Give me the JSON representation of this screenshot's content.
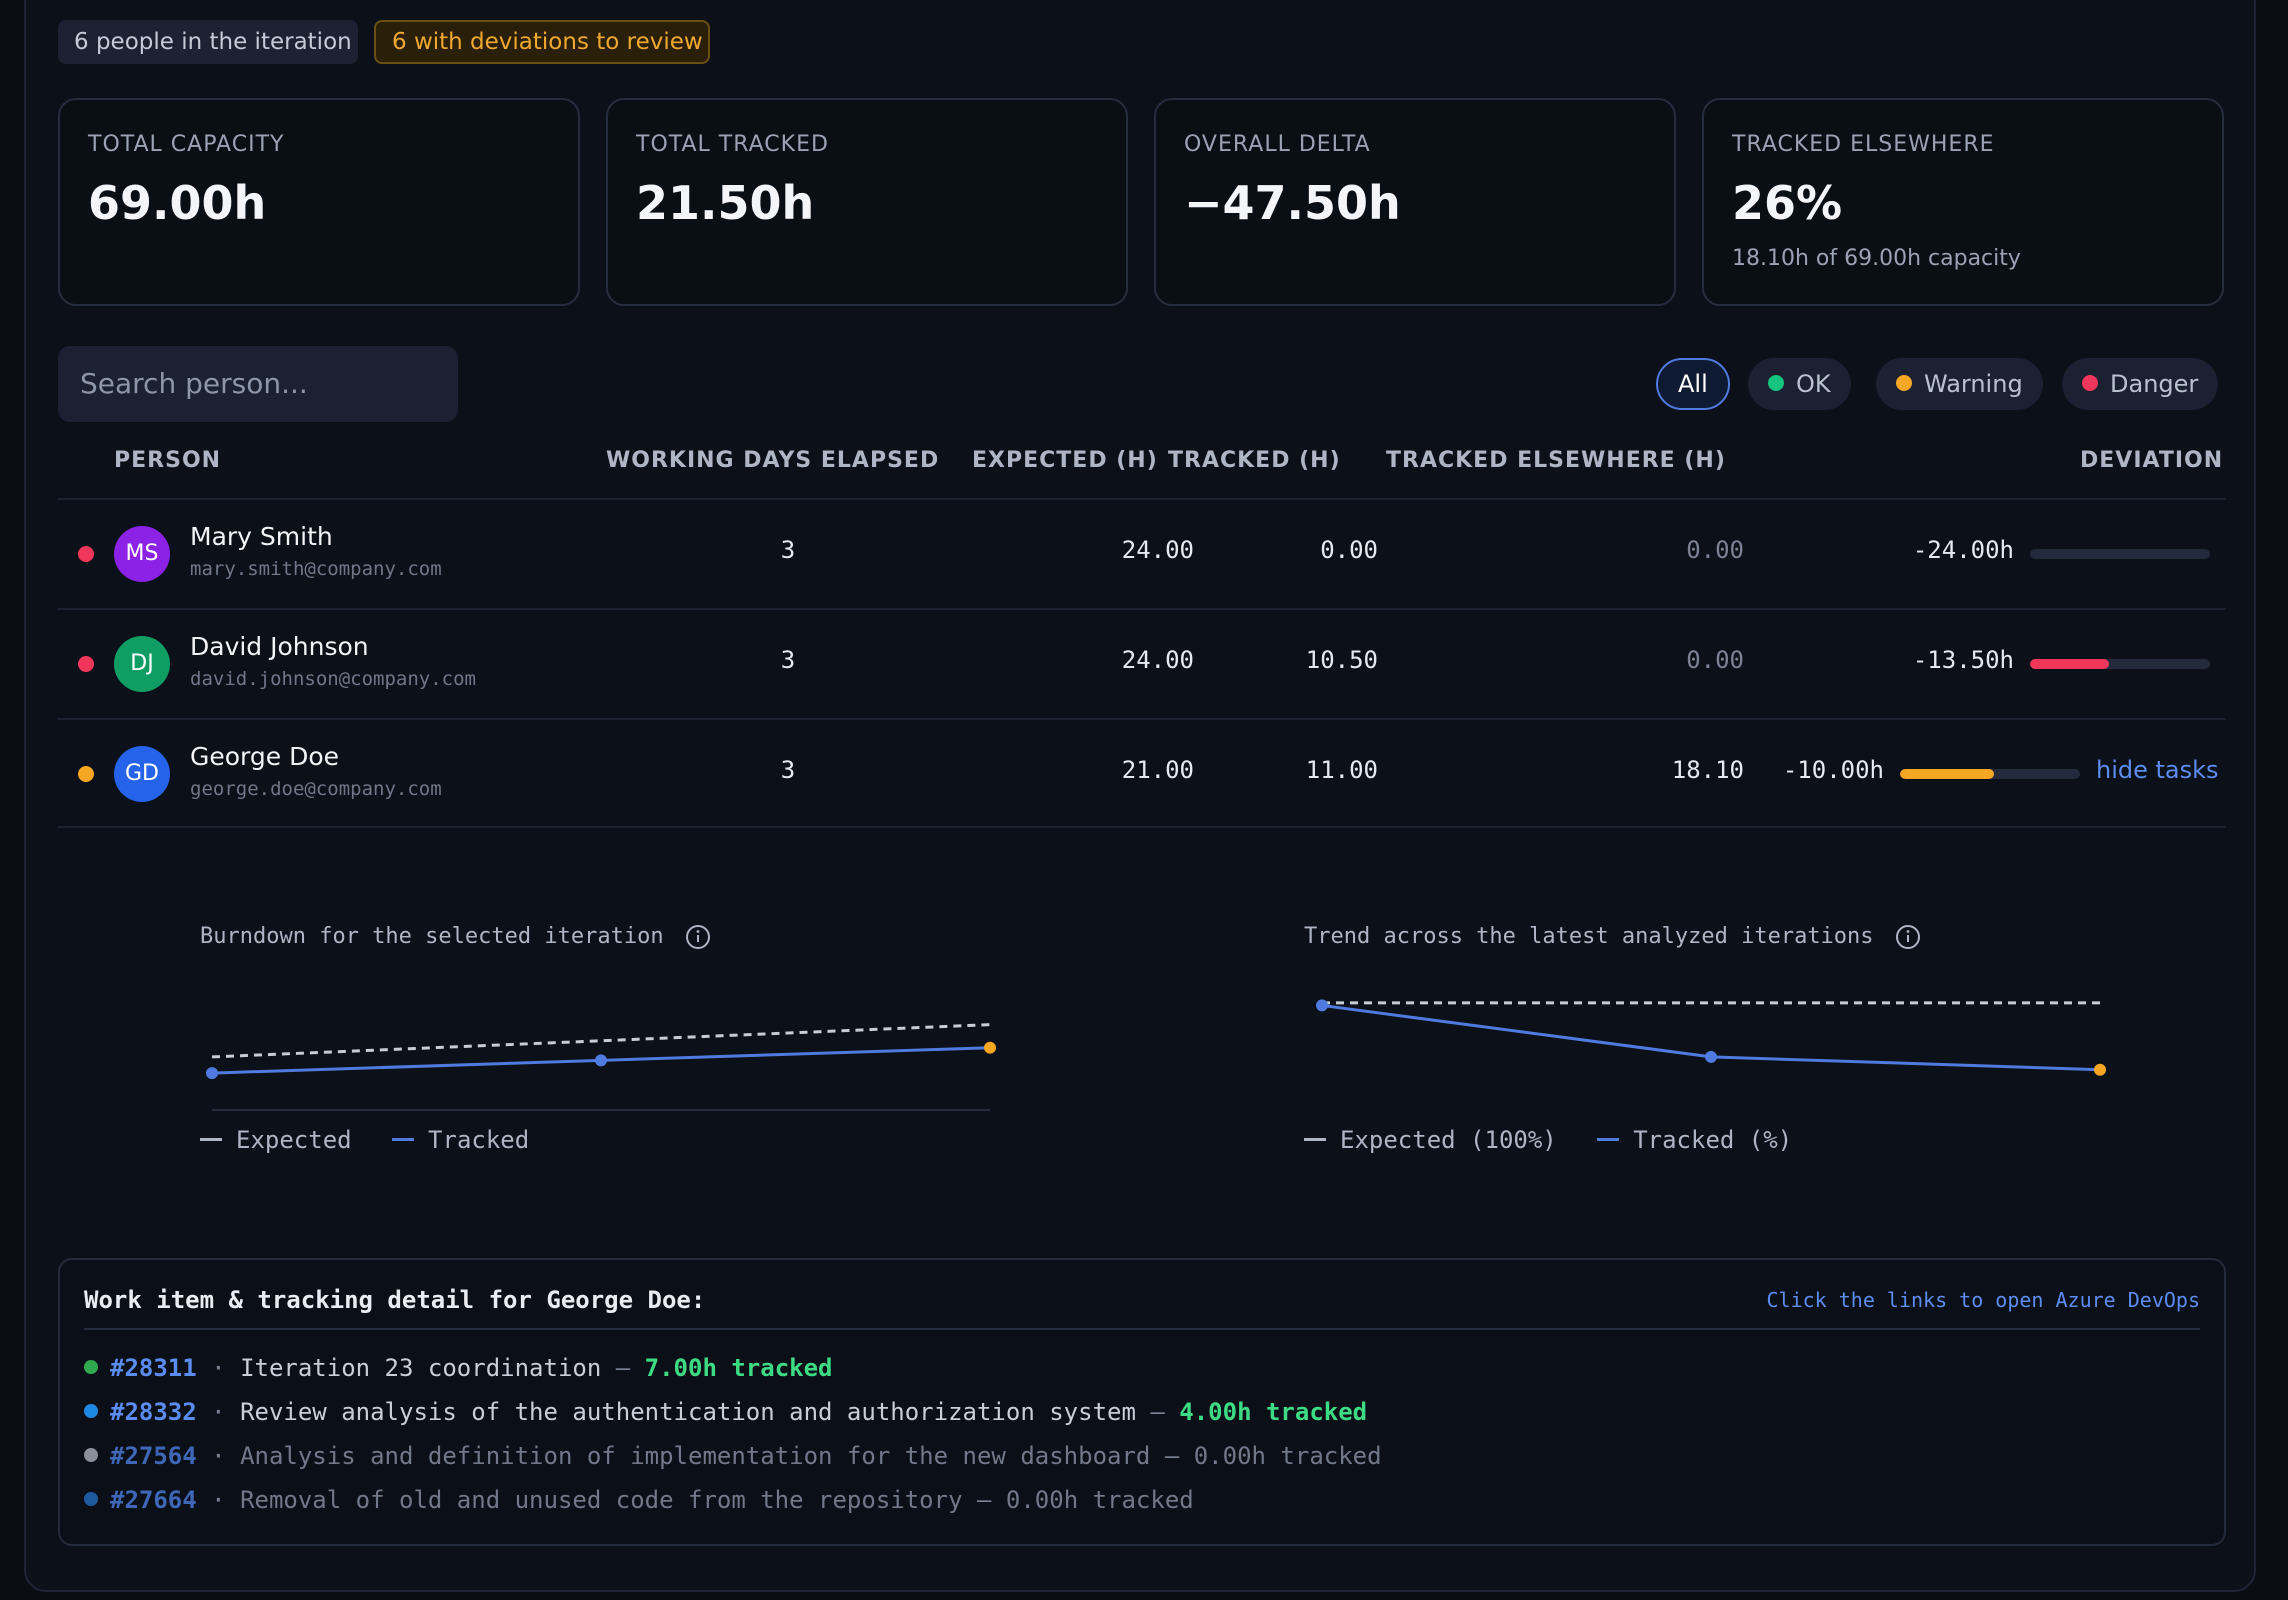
{
  "summary": {
    "people_count": "6 people in the iteration",
    "deviations": "6 with deviations to review"
  },
  "cards": [
    {
      "label": "TOTAL CAPACITY",
      "value": "69.00h",
      "sub": ""
    },
    {
      "label": "TOTAL TRACKED",
      "value": "21.50h",
      "sub": ""
    },
    {
      "label": "OVERALL DELTA",
      "value": "−47.50h",
      "sub": ""
    },
    {
      "label": "TRACKED ELSEWHERE",
      "value": "26%",
      "sub": "18.10h of 69.00h capacity"
    }
  ],
  "search": {
    "placeholder": "Search person..."
  },
  "filters": [
    {
      "label": "All",
      "active": true,
      "color": ""
    },
    {
      "label": "OK",
      "active": false,
      "color": "#16c47f"
    },
    {
      "label": "Warning",
      "active": false,
      "color": "#f5a623"
    },
    {
      "label": "Danger",
      "active": false,
      "color": "#f0365a"
    }
  ],
  "table": {
    "headers": {
      "person": "PERSON",
      "days": "WORKING DAYS ELAPSED",
      "expected": "EXPECTED (H)",
      "tracked": "TRACKED (H)",
      "elsewhere": "TRACKED ELSEWHERE (H)",
      "deviation": "DEVIATION"
    },
    "rows": [
      {
        "status_color": "#f0365a",
        "initials": "MS",
        "avatar_color": "#8b22e6",
        "name": "Mary Smith",
        "email": "mary.smith@company.com",
        "days": "3",
        "expected": "24.00",
        "tracked": "0.00",
        "elsewhere": "0.00",
        "deviation": "-24.00h",
        "deviation_fill": 0.0,
        "bar_color": "#f0365a",
        "action": ""
      },
      {
        "status_color": "#f0365a",
        "initials": "DJ",
        "avatar_color": "#0f9d63",
        "name": "David Johnson",
        "email": "david.johnson@company.com",
        "days": "3",
        "expected": "24.00",
        "tracked": "10.50",
        "elsewhere": "0.00",
        "deviation": "-13.50h",
        "deviation_fill": 0.4375,
        "bar_color": "#f0365a",
        "action": ""
      },
      {
        "status_color": "#f5a623",
        "initials": "GD",
        "avatar_color": "#2563eb",
        "name": "George Doe",
        "email": "george.doe@company.com",
        "days": "3",
        "expected": "21.00",
        "tracked": "11.00",
        "elsewhere": "18.10",
        "deviation": "-10.00h",
        "deviation_fill": 0.5238,
        "bar_color": "#f5a623",
        "action": "hide tasks"
      }
    ]
  },
  "chart_data": [
    {
      "type": "line",
      "title": "Burndown for the selected iteration",
      "x": [
        1,
        2,
        3
      ],
      "series": [
        {
          "name": "Expected",
          "values": [
            7,
            14,
            21
          ],
          "style": "dashed",
          "color": "#c7ccd6"
        },
        {
          "name": "Tracked",
          "values": [
            0,
            5.5,
            11
          ],
          "color": "#4f7be0"
        }
      ],
      "legend": "bottom-left"
    },
    {
      "type": "line",
      "title": "Trend across the latest analyzed iterations",
      "x": [
        1,
        2,
        3
      ],
      "series": [
        {
          "name": "Expected (100%)",
          "values": [
            100,
            100,
            100
          ],
          "style": "dashed",
          "color": "#c7ccd6"
        },
        {
          "name": "Tracked (%)",
          "values": [
            98,
            58,
            48
          ],
          "color": "#4f7be0"
        }
      ],
      "legend": "bottom-left"
    }
  ],
  "chart_icons": "info-icon",
  "detail": {
    "title": "Work item & tracking detail for George Doe:",
    "hint": "Click the links to open Azure DevOps",
    "items": [
      {
        "color": "#2fa84f",
        "id": "#28311",
        "title": "Iteration 23 coordination",
        "hours": "7.00h tracked",
        "muted": false
      },
      {
        "color": "#1e88e5",
        "id": "#28332",
        "title": "Review analysis of the authentication and authorization system",
        "hours": "4.00h tracked",
        "muted": false
      },
      {
        "color": "#8a8f99",
        "id": "#27564",
        "title": "Analysis and definition of implementation for the new dashboard",
        "hours": "0.00h tracked",
        "muted": true
      },
      {
        "color": "#1f5a9e",
        "id": "#27664",
        "title": "Removal of old and unused code from the repository",
        "hours": "0.00h tracked",
        "muted": true
      }
    ]
  }
}
